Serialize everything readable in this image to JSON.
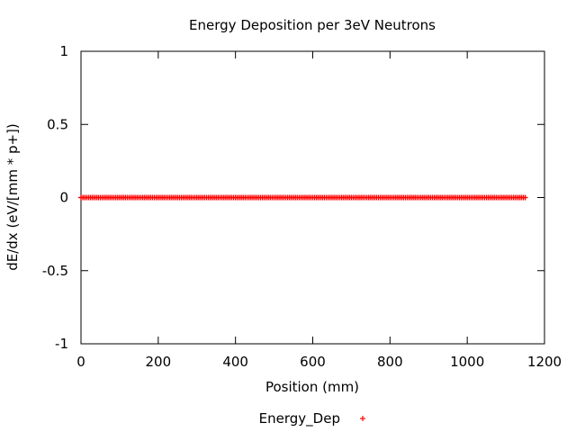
{
  "chart_data": {
    "type": "scatter",
    "title": "Energy Deposition per 3eV Neutrons",
    "xlabel": "Position (mm)",
    "ylabel": "dE/dx (eV/[mm * p+])",
    "xlim": [
      0,
      1200
    ],
    "ylim": [
      -1,
      1
    ],
    "xticks": [
      0,
      200,
      400,
      600,
      800,
      1000,
      1200
    ],
    "yticks": [
      -1,
      -0.5,
      0,
      0.5,
      1
    ],
    "xtick_labels": [
      "0",
      "200",
      "400",
      "600",
      "800",
      "1000",
      "1200"
    ],
    "ytick_labels": [
      "-1",
      "-0.5",
      "0",
      "0.5",
      "1"
    ],
    "grid": false,
    "legend_position": "bottom-center",
    "series": [
      {
        "name": "Energy_Dep",
        "marker": "+",
        "color": "#ff0000",
        "x_start": 0,
        "x_end": 1150,
        "x_step": 5,
        "y_value": 0
      }
    ]
  }
}
